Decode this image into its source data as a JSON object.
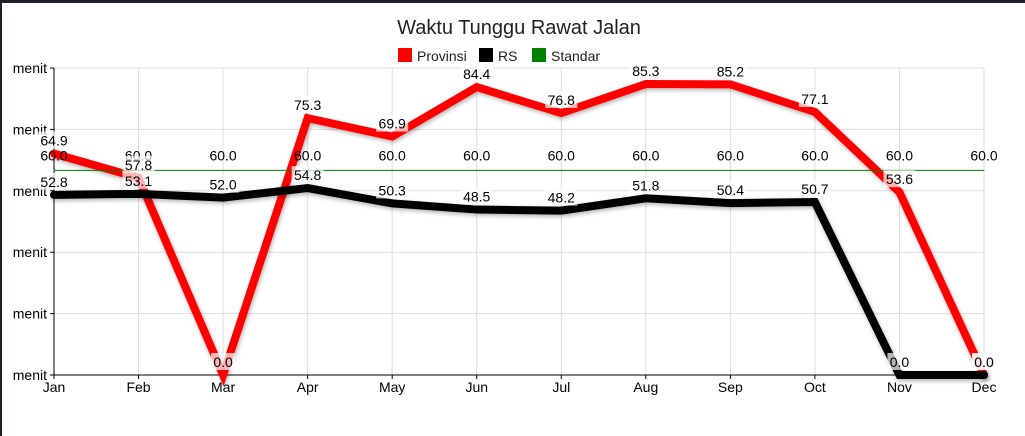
{
  "chart_data": {
    "type": "line",
    "title": "Waktu Tunggu Rawat Jalan",
    "xlabel": "",
    "ylabel": "",
    "ytick_label": "menit",
    "yticks": [
      0,
      18,
      36,
      54,
      72,
      90
    ],
    "ylim": [
      0,
      90
    ],
    "grid": true,
    "legend_position": "top",
    "categories": [
      "Jan",
      "Feb",
      "Mar",
      "Apr",
      "May",
      "Jun",
      "Jul",
      "Aug",
      "Sep",
      "Oct",
      "Nov",
      "Dec"
    ],
    "series": [
      {
        "name": "Provinsi",
        "color": "#ff0000",
        "values": [
          64.9,
          57.8,
          0.0,
          75.3,
          69.9,
          84.4,
          76.8,
          85.3,
          85.2,
          77.1,
          53.6,
          0.0
        ]
      },
      {
        "name": "RS",
        "color": "#000000",
        "values": [
          52.8,
          53.1,
          52.0,
          54.8,
          50.3,
          48.5,
          48.2,
          51.8,
          50.4,
          50.7,
          0.0,
          0.0
        ]
      },
      {
        "name": "Standar",
        "color": "#008000",
        "values": [
          60.0,
          60.0,
          60.0,
          60.0,
          60.0,
          60.0,
          60.0,
          60.0,
          60.0,
          60.0,
          60.0,
          60.0
        ]
      }
    ]
  }
}
